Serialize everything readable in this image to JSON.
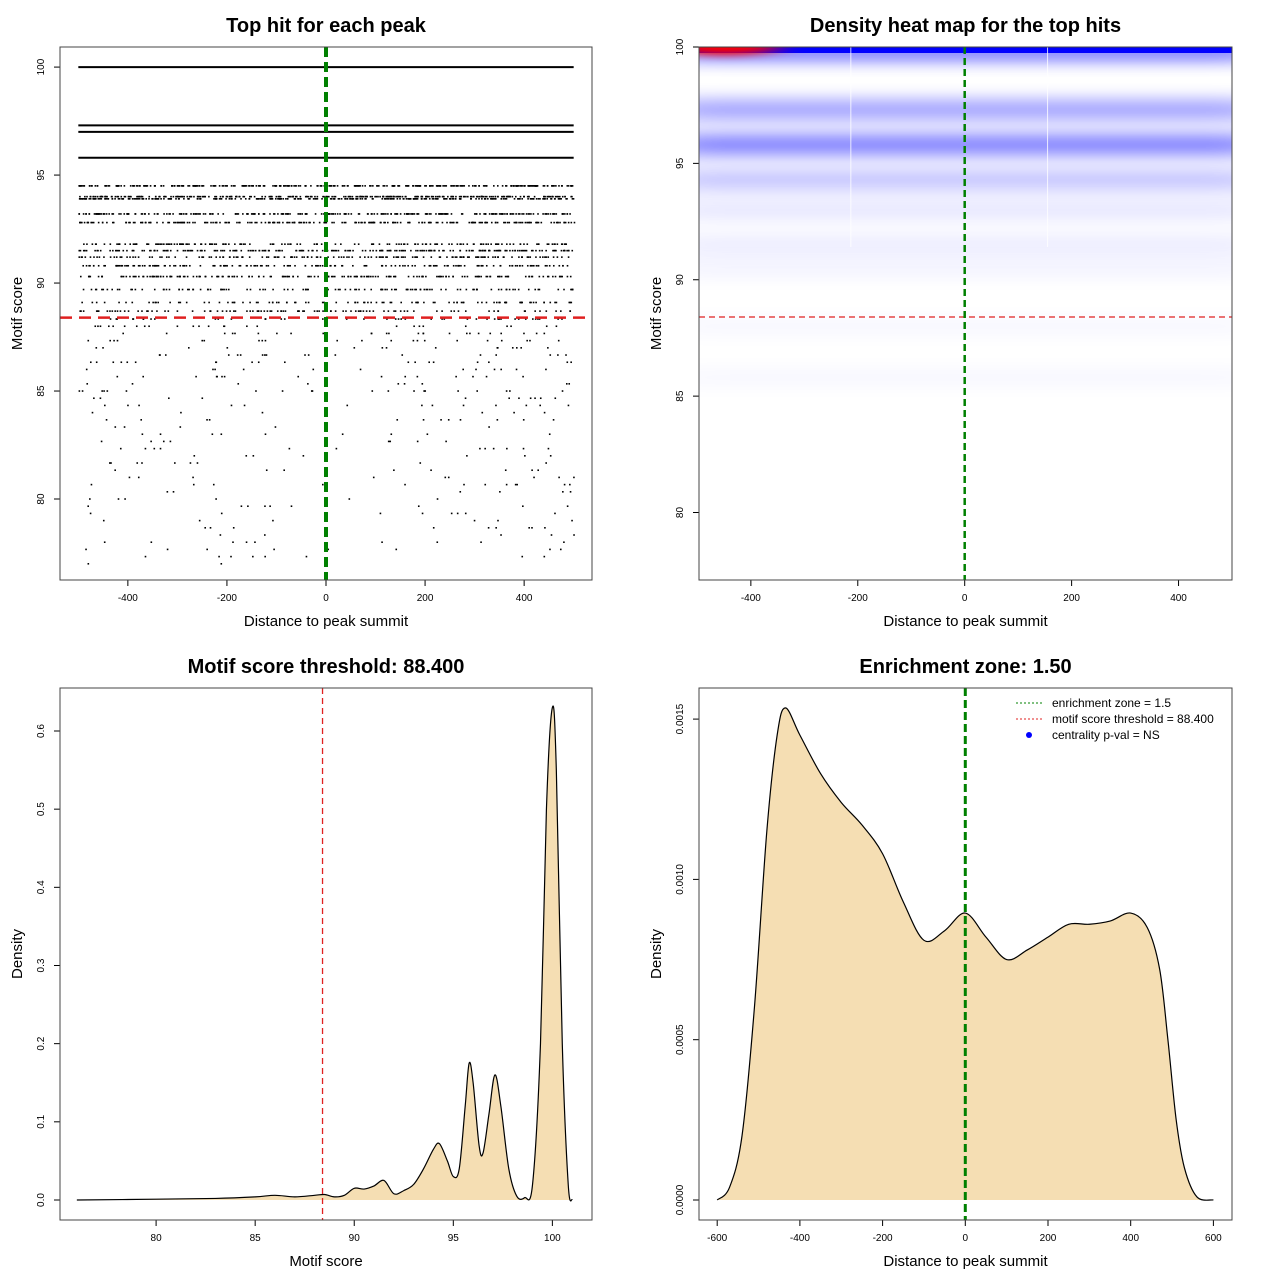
{
  "chart_data": [
    {
      "type": "scatter",
      "title": "Top hit for each peak",
      "xlabel": "Distance to peak summit",
      "ylabel": "Motif score",
      "xlim": [
        -537,
        537
      ],
      "ylim": [
        76.25,
        100.93
      ],
      "xticks": [
        "-400",
        "-200",
        "0",
        "200",
        "400"
      ],
      "xtick_values": [
        -400,
        -200,
        0,
        200,
        400
      ],
      "yticks": [
        "80",
        "85",
        "90",
        "95",
        "100"
      ],
      "ytick_values": [
        80,
        85,
        90,
        95,
        100
      ],
      "x_range_of_points": [
        -500,
        500
      ],
      "score_levels": [
        {
          "score": 100,
          "coverage": 1.0
        },
        {
          "score": 97.3,
          "coverage": 1.0
        },
        {
          "score": 97.0,
          "coverage": 1.0
        },
        {
          "score": 95.8,
          "coverage": 1.0
        },
        {
          "score": 94.5,
          "coverage": 0.97
        },
        {
          "score": 94.0,
          "coverage": 0.9
        },
        {
          "score": 93.9,
          "coverage": 0.85
        },
        {
          "score": 93.2,
          "coverage": 0.75
        },
        {
          "score": 92.8,
          "coverage": 0.65
        },
        {
          "score": 91.8,
          "coverage": 0.45
        },
        {
          "score": 91.5,
          "coverage": 0.65
        },
        {
          "score": 91.2,
          "coverage": 0.45
        },
        {
          "score": 90.8,
          "coverage": 0.5
        },
        {
          "score": 90.3,
          "coverage": 0.55
        },
        {
          "score": 89.7,
          "coverage": 0.35
        },
        {
          "score": 89.1,
          "coverage": 0.3
        },
        {
          "score": 88.7,
          "coverage": 0.3
        }
      ],
      "sparse_points_below": [
        77.0,
        88.4
      ],
      "hlines": [
        {
          "y": 88.4,
          "color": "#e02020",
          "style": "dashed"
        }
      ],
      "vlines": [
        {
          "x": 0,
          "color": "#008000",
          "style": "dashed"
        }
      ],
      "grid": false
    },
    {
      "type": "heatmap",
      "title": "Density heat map for the top hits",
      "xlabel": "Distance to peak summit",
      "ylabel": "Motif score",
      "xlim": [
        -497,
        500
      ],
      "ylim": [
        77.1,
        100
      ],
      "xticks": [
        "-400",
        "-200",
        "0",
        "200",
        "400"
      ],
      "xtick_values": [
        -400,
        -200,
        0,
        200,
        400
      ],
      "yticks": [
        "80",
        "85",
        "90",
        "95",
        "100"
      ],
      "ytick_values": [
        80,
        85,
        90,
        95,
        100
      ],
      "colors": {
        "low": "#ffffff",
        "mid": "#0000ff",
        "high": "#ff0000"
      },
      "bands": [
        {
          "score": 99.8,
          "intensity": 1.0
        },
        {
          "score": 97.3,
          "intensity": 0.4
        },
        {
          "score": 95.8,
          "intensity": 0.55
        },
        {
          "score": 94.3,
          "intensity": 0.25
        },
        {
          "score": 93.0,
          "intensity": 0.1
        },
        {
          "score": 91.5,
          "intensity": 0.08
        },
        {
          "score": 90.5,
          "intensity": 0.05
        },
        {
          "score": 88.0,
          "intensity": 0.03
        },
        {
          "score": 85.8,
          "intensity": 0.03
        }
      ],
      "hotspot": {
        "x": -450,
        "score": 100
      },
      "hlines": [
        {
          "y": 88.4,
          "color": "#e02020",
          "style": "dashed"
        }
      ],
      "vlines": [
        {
          "x": 0,
          "color": "#008000",
          "style": "dashed"
        }
      ]
    },
    {
      "type": "area",
      "title": "Motif score threshold: 88.400",
      "xlabel": "Motif score",
      "ylabel": "Density",
      "xlim": [
        75.15,
        102.0
      ],
      "ylim": [
        -0.0256,
        0.655
      ],
      "xticks": [
        "80",
        "85",
        "90",
        "95",
        "100"
      ],
      "xtick_values": [
        80,
        85,
        90,
        95,
        100
      ],
      "yticks": [
        "0.0",
        "0.1",
        "0.2",
        "0.3",
        "0.4",
        "0.5",
        "0.6"
      ],
      "ytick_values": [
        0,
        0.1,
        0.2,
        0.3,
        0.4,
        0.5,
        0.6
      ],
      "fill": "#f5deb3",
      "x": [
        76,
        80,
        83,
        85,
        86,
        87,
        88,
        88.5,
        89,
        89.5,
        90,
        90.5,
        91,
        91.5,
        92,
        92.5,
        93,
        93.5,
        94,
        94.3,
        94.7,
        95,
        95.3,
        95.6,
        95.8,
        96,
        96.3,
        96.5,
        96.8,
        97.1,
        97.4,
        97.8,
        98.2,
        98.6,
        99,
        99.4,
        99.7,
        100,
        100.2,
        100.5,
        100.8,
        101
      ],
      "y": [
        0,
        0.001,
        0.002,
        0.004,
        0.006,
        0.004,
        0.006,
        0.007,
        0.004,
        0.006,
        0.015,
        0.014,
        0.018,
        0.025,
        0.008,
        0.012,
        0.02,
        0.04,
        0.065,
        0.072,
        0.05,
        0.03,
        0.04,
        0.12,
        0.175,
        0.15,
        0.07,
        0.06,
        0.11,
        0.16,
        0.12,
        0.04,
        0.005,
        0.003,
        0.02,
        0.2,
        0.5,
        0.63,
        0.55,
        0.2,
        0.02,
        0
      ],
      "vlines": [
        {
          "x": 88.4,
          "color": "#e02020",
          "style": "dashed"
        }
      ]
    },
    {
      "type": "area",
      "title": "Enrichment zone: 1.50",
      "xlabel": "Distance to peak summit",
      "ylabel": "Density",
      "xlim": [
        -644,
        645
      ],
      "ylim": [
        -6.24e-05,
        0.001597
      ],
      "xticks": [
        "-600",
        "-400",
        "-200",
        "0",
        "200",
        "400",
        "600"
      ],
      "xtick_values": [
        -600,
        -400,
        -200,
        0,
        200,
        400,
        600
      ],
      "yticks": [
        "0.0000",
        "0.0005",
        "0.0010",
        "0.0015"
      ],
      "ytick_values": [
        0,
        0.0005,
        0.001,
        0.0015
      ],
      "fill": "#f5deb3",
      "x": [
        -600,
        -570,
        -540,
        -510,
        -480,
        -455,
        -435,
        -400,
        -350,
        -300,
        -250,
        -200,
        -150,
        -100,
        -50,
        0,
        50,
        100,
        150,
        200,
        250,
        300,
        350,
        400,
        440,
        470,
        490,
        510,
        530,
        560,
        600
      ],
      "y": [
        0,
        4e-05,
        0.0002,
        0.0006,
        0.00115,
        0.00145,
        0.001535,
        0.00145,
        0.00133,
        0.00124,
        0.00117,
        0.00108,
        0.00093,
        0.00081,
        0.00084,
        0.000895,
        0.00082,
        0.00075,
        0.00078,
        0.00082,
        0.00086,
        0.00086,
        0.00087,
        0.000895,
        0.00085,
        0.00072,
        0.0005,
        0.00025,
        0.0001,
        1e-05,
        0
      ],
      "vlines": [
        {
          "x": 0,
          "color": "#008000",
          "style": "dashed"
        }
      ],
      "legend": {
        "position": "top-right",
        "entries": [
          {
            "label": "enrichment zone = 1.5",
            "color": "#008000",
            "symbol": "dotted-line"
          },
          {
            "label": "motif score threshold = 88.400",
            "color": "#e02020",
            "symbol": "dotted-line"
          },
          {
            "label": "centrality p-val = NS",
            "color": "#0000ff",
            "symbol": "dot"
          }
        ]
      }
    }
  ]
}
